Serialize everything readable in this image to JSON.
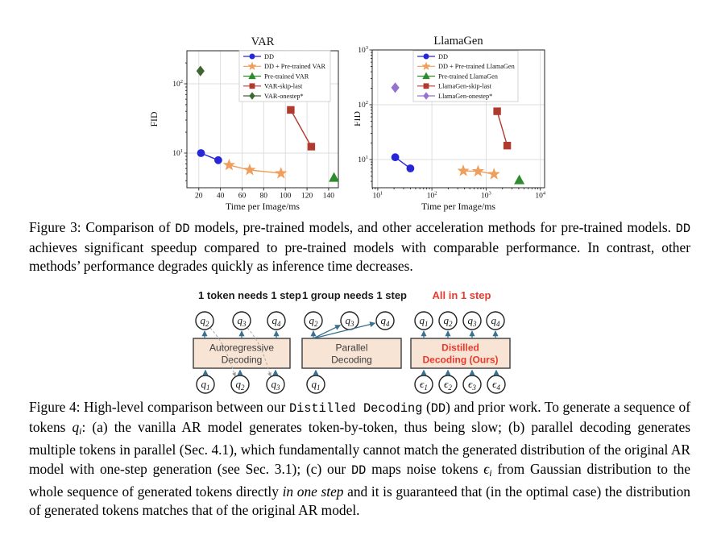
{
  "page": {
    "background": "#ffffff"
  },
  "chart_data": [
    {
      "type": "scatter",
      "title": "VAR",
      "xlabel": "Time per Image/ms",
      "ylabel": "FID",
      "xscale": "linear",
      "yscale": "log",
      "xlim": [
        9,
        149
      ],
      "ylim": [
        3.16,
        300
      ],
      "xticks": [
        20,
        40,
        60,
        80,
        100,
        120,
        140
      ],
      "yticks": [
        10,
        100
      ],
      "grid": true,
      "legend_position": "upper right",
      "legend_box": [
        114,
        25,
        113,
        63
      ],
      "series": [
        {
          "name": "DD",
          "marker": "circle",
          "color": "#2727d8",
          "line": true,
          "points": [
            [
              22,
              10
            ],
            [
              38,
              7.9
            ]
          ]
        },
        {
          "name": "DD + Pre-trained VAR",
          "marker": "star",
          "color": "#ef9e5b",
          "line": true,
          "points": [
            [
              48,
              6.7
            ],
            [
              67,
              5.7
            ],
            [
              96,
              5.1
            ]
          ]
        },
        {
          "name": "Pre-trained VAR",
          "marker": "triangle",
          "color": "#2e8b2e",
          "line": false,
          "points": [
            [
              145,
              4.4
            ]
          ]
        },
        {
          "name": "VAR-skip-last",
          "marker": "square",
          "color": "#b03a2e",
          "line": true,
          "points": [
            [
              105,
              42
            ],
            [
              124,
              12.4
            ]
          ]
        },
        {
          "name": "VAR-onestep*",
          "marker": "diamond",
          "color": "#3f6632",
          "line": false,
          "points": [
            [
              21.5,
              153
            ]
          ]
        }
      ]
    },
    {
      "type": "scatter",
      "title": "LlamaGen",
      "xlabel": "Time per Image/ms",
      "ylabel": "FID",
      "xscale": "log",
      "yscale": "log",
      "xlim": [
        7.9,
        12000
      ],
      "ylim": [
        3.06,
        1000
      ],
      "xticks": [
        10,
        100,
        1000,
        10000
      ],
      "yticks": [
        10,
        100,
        1000
      ],
      "grid": true,
      "legend_position": "upper center",
      "legend_box": [
        73,
        28,
        130,
        63
      ],
      "series": [
        {
          "name": "DD",
          "marker": "circle",
          "color": "#2727d8",
          "line": true,
          "points": [
            [
              21,
              11
            ],
            [
              40,
              6.9
            ]
          ]
        },
        {
          "name": "DD + Pre-trained LlamaGen",
          "marker": "star",
          "color": "#ef9e5b",
          "line": true,
          "points": [
            [
              380,
              6.2
            ],
            [
              710,
              6.1
            ],
            [
              1400,
              5.4
            ]
          ]
        },
        {
          "name": "Pre-trained LlamaGen",
          "marker": "triangle",
          "color": "#2e8b2e",
          "line": false,
          "points": [
            [
              4100,
              4.2
            ]
          ]
        },
        {
          "name": "LlamaGen-skip-last",
          "marker": "square",
          "color": "#b03a2e",
          "line": true,
          "points": [
            [
              1600,
              76
            ],
            [
              2450,
              18
            ]
          ]
        },
        {
          "name": "LlamaGen-onestep*",
          "marker": "diamond",
          "color": "#9671d0",
          "line": false,
          "points": [
            [
              21,
              205
            ]
          ]
        }
      ]
    }
  ],
  "figure3": {
    "caption_segments": [
      {
        "t": "Figure 3: Comparison of ",
        "style": "normal"
      },
      {
        "t": "DD",
        "style": "mono"
      },
      {
        "t": " models, pre-trained models, and other acceleration methods for pre-trained models. ",
        "style": "normal"
      },
      {
        "t": "DD",
        "style": "mono"
      },
      {
        "t": " achieves significant speedup compared to pre-trained models with comparable performance. In contrast, other methods’ performance degrades quickly as inference time decreases.",
        "style": "normal"
      }
    ]
  },
  "figure4": {
    "box_fill": "#f7e4d4",
    "arrow_color": "#3a7090",
    "accent_red": "#e8392e",
    "panels": [
      {
        "header": "1 token needs 1 step",
        "header_color": "#1a1a1a",
        "box_lines": [
          "Autoregressive",
          "Decoding"
        ],
        "box_text_color": "#3b3b3b",
        "box_bold": false,
        "top_tokens": [
          {
            "sym": "q",
            "sub": "2"
          },
          {
            "sym": "q",
            "sub": "3"
          },
          {
            "sym": "q",
            "sub": "4"
          }
        ],
        "bottom_tokens": [
          {
            "sym": "q",
            "sub": "1"
          },
          {
            "sym": "q",
            "sub": "2"
          },
          {
            "sym": "q",
            "sub": "3"
          }
        ],
        "arrow_style": "one-to-one-feedback"
      },
      {
        "header": "1 group needs 1 step",
        "header_color": "#1a1a1a",
        "box_lines": [
          "Parallel",
          "Decoding"
        ],
        "box_text_color": "#3b3b3b",
        "box_bold": false,
        "top_tokens": [
          {
            "sym": "q",
            "sub": "2"
          },
          {
            "sym": "q",
            "sub": "3"
          },
          {
            "sym": "q",
            "sub": "4"
          }
        ],
        "bottom_tokens": [
          {
            "sym": "q",
            "sub": "1"
          }
        ],
        "arrow_style": "fan"
      },
      {
        "header": "All in 1 step",
        "header_color": "#e8392e",
        "box_lines": [
          "Distilled",
          "Decoding (Ours)"
        ],
        "box_text_color": "#e8392e",
        "box_bold": true,
        "top_tokens": [
          {
            "sym": "q",
            "sub": "1"
          },
          {
            "sym": "q",
            "sub": "2"
          },
          {
            "sym": "q",
            "sub": "3"
          },
          {
            "sym": "q",
            "sub": "4"
          }
        ],
        "bottom_tokens": [
          {
            "sym": "ϵ",
            "sub": "1"
          },
          {
            "sym": "ϵ",
            "sub": "2"
          },
          {
            "sym": "ϵ",
            "sub": "3"
          },
          {
            "sym": "ϵ",
            "sub": "4"
          }
        ],
        "arrow_style": "parallel"
      }
    ],
    "caption_segments": [
      {
        "t": "Figure 4: High-level comparison between our ",
        "style": "normal"
      },
      {
        "t": "Distilled Decoding",
        "style": "mono"
      },
      {
        "t": " (",
        "style": "normal"
      },
      {
        "t": "DD",
        "style": "mono"
      },
      {
        "t": ") and prior work. To generate a sequence of tokens ",
        "style": "normal"
      },
      {
        "t": "q",
        "style": "italic"
      },
      {
        "t": "i",
        "style": "italic-sub"
      },
      {
        "t": ": (a) the vanilla AR model generates token-by-token, thus being slow; (b) parallel decoding generates multiple tokens in parallel (Sec. 4.1), which fundamentally cannot match the generated distribution of the original AR model with one-step generation (see Sec. 3.1); (c) our ",
        "style": "normal"
      },
      {
        "t": "DD",
        "style": "mono"
      },
      {
        "t": " maps noise tokens ",
        "style": "normal"
      },
      {
        "t": "ϵ",
        "style": "italic"
      },
      {
        "t": "i",
        "style": "italic-sub"
      },
      {
        "t": " from Gaussian distribution to the whole sequence of generated tokens directly ",
        "style": "normal"
      },
      {
        "t": "in one step",
        "style": "italic"
      },
      {
        "t": " and it is guaranteed that (in the optimal case) the distribution of generated tokens matches that of the original AR model.",
        "style": "normal"
      }
    ]
  }
}
